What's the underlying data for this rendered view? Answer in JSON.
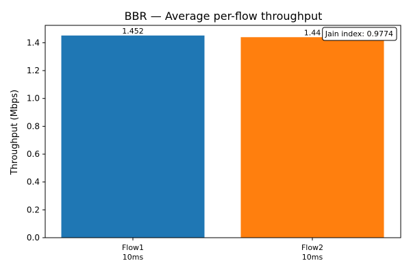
{
  "chart_data": {
    "type": "bar",
    "title": "BBR — Average per-flow throughput",
    "ylabel": "Throughput (Mbps)",
    "xlabel": "",
    "categories": [
      "Flow1\n10ms",
      "Flow2\n10ms"
    ],
    "values": [
      1.452,
      1.44
    ],
    "value_labels": [
      "1.452",
      "1.44"
    ],
    "colors": [
      "#1f77b4",
      "#ff7f0e"
    ],
    "ylim": [
      0,
      1.525
    ],
    "yticks": [
      0.0,
      0.2,
      0.4,
      0.6,
      0.8,
      1.0,
      1.2,
      1.4
    ],
    "ytick_labels": [
      "0.0",
      "0.2",
      "0.4",
      "0.6",
      "0.8",
      "1.0",
      "1.2",
      "1.4"
    ],
    "grid": false,
    "annotation": "Jain index: 0.9774",
    "annotation_position": "top-right"
  }
}
